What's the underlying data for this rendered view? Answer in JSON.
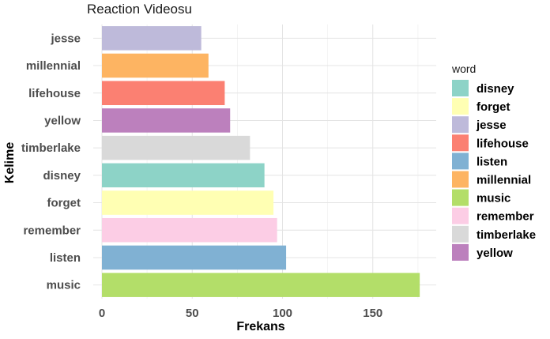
{
  "chart_data": {
    "type": "bar",
    "orientation": "horizontal",
    "title": "Reaction Videosu",
    "xlabel": "Frekans",
    "ylabel": "Kelime",
    "categories": [
      "music",
      "listen",
      "remember",
      "forget",
      "disney",
      "timberlake",
      "yellow",
      "lifehouse",
      "millennial",
      "jesse"
    ],
    "values": [
      176,
      102,
      97,
      95,
      90,
      82,
      71,
      68,
      59,
      55
    ],
    "xlim": [
      0,
      185
    ],
    "xticks": [
      0,
      50,
      100,
      150
    ],
    "grid": true,
    "legend": {
      "title": "word",
      "position": "right",
      "entries": [
        "disney",
        "forget",
        "jesse",
        "lifehouse",
        "listen",
        "millennial",
        "music",
        "remember",
        "timberlake",
        "yellow"
      ]
    },
    "colors": {
      "disney": "#8DD3C7",
      "forget": "#FFFFB3",
      "jesse": "#BEBADA",
      "lifehouse": "#FB8072",
      "listen": "#80B1D3",
      "millennial": "#FDB462",
      "music": "#B3DE69",
      "remember": "#FCCDE5",
      "timberlake": "#D9D9D9",
      "yellow": "#BC80BD"
    }
  }
}
